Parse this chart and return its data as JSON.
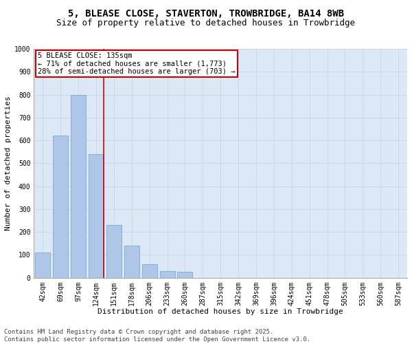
{
  "title_line1": "5, BLEASE CLOSE, STAVERTON, TROWBRIDGE, BA14 8WB",
  "title_line2": "Size of property relative to detached houses in Trowbridge",
  "xlabel": "Distribution of detached houses by size in Trowbridge",
  "ylabel": "Number of detached properties",
  "bar_color": "#aec6e8",
  "bar_edge_color": "#7aaad0",
  "grid_color": "#c8d8ec",
  "bg_color": "#dce8f5",
  "annotation_box_color": "#cc0000",
  "annotation_line_color": "#cc0000",
  "footer_line1": "Contains HM Land Registry data © Crown copyright and database right 2025.",
  "footer_line2": "Contains public sector information licensed under the Open Government Licence v3.0.",
  "annotation_title": "5 BLEASE CLOSE: 135sqm",
  "annotation_line2": "← 71% of detached houses are smaller (1,773)",
  "annotation_line3": "28% of semi-detached houses are larger (703) →",
  "categories": [
    "42sqm",
    "69sqm",
    "97sqm",
    "124sqm",
    "151sqm",
    "178sqm",
    "206sqm",
    "233sqm",
    "260sqm",
    "287sqm",
    "315sqm",
    "342sqm",
    "369sqm",
    "396sqm",
    "424sqm",
    "451sqm",
    "478sqm",
    "505sqm",
    "533sqm",
    "560sqm",
    "587sqm"
  ],
  "values": [
    110,
    620,
    800,
    540,
    230,
    140,
    60,
    30,
    25,
    0,
    0,
    0,
    0,
    0,
    0,
    0,
    0,
    0,
    0,
    0,
    0
  ],
  "ylim": [
    0,
    1000
  ],
  "yticks": [
    0,
    100,
    200,
    300,
    400,
    500,
    600,
    700,
    800,
    900,
    1000
  ],
  "title_fontsize": 10,
  "subtitle_fontsize": 9,
  "axis_label_fontsize": 8,
  "tick_fontsize": 7,
  "annotation_fontsize": 7.5,
  "footer_fontsize": 6.5
}
